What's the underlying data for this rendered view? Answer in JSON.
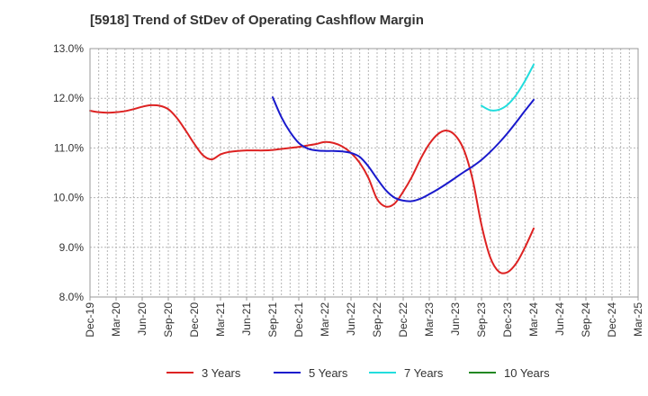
{
  "chart_data": {
    "type": "line",
    "title": "[5918]  Trend of StDev of Operating Cashflow Margin",
    "xlabel": "",
    "ylabel": "",
    "ylim": [
      8.0,
      13.0
    ],
    "y_ticks": [
      "8.0%",
      "9.0%",
      "10.0%",
      "11.0%",
      "12.0%",
      "13.0%"
    ],
    "y_tick_values": [
      8.0,
      9.0,
      10.0,
      11.0,
      12.0,
      13.0
    ],
    "x_ticks": [
      "Dec-19",
      "Mar-20",
      "Jun-20",
      "Sep-20",
      "Dec-20",
      "Mar-21",
      "Jun-21",
      "Sep-21",
      "Dec-21",
      "Mar-22",
      "Jun-22",
      "Sep-22",
      "Dec-22",
      "Mar-23",
      "Jun-23",
      "Sep-23",
      "Dec-23",
      "Mar-24",
      "Jun-24",
      "Sep-24",
      "Dec-24",
      "Mar-25"
    ],
    "grid": true,
    "legend_position": "bottom",
    "series": [
      {
        "name": "3 Years",
        "color": "#dd2222",
        "points": [
          [
            "Dec-19",
            11.75
          ],
          [
            "Jan-20",
            11.72
          ],
          [
            "Feb-20",
            11.71
          ],
          [
            "Mar-20",
            11.72
          ],
          [
            "Apr-20",
            11.74
          ],
          [
            "May-20",
            11.78
          ],
          [
            "Jun-20",
            11.83
          ],
          [
            "Jul-20",
            11.86
          ],
          [
            "Aug-20",
            11.85
          ],
          [
            "Sep-20",
            11.78
          ],
          [
            "Oct-20",
            11.6
          ],
          [
            "Nov-20",
            11.35
          ],
          [
            "Dec-20",
            11.08
          ],
          [
            "Jan-21",
            10.85
          ],
          [
            "Feb-21",
            10.77
          ],
          [
            "Mar-21",
            10.87
          ],
          [
            "Apr-21",
            10.92
          ],
          [
            "May-21",
            10.94
          ],
          [
            "Jun-21",
            10.95
          ],
          [
            "Jul-21",
            10.95
          ],
          [
            "Aug-21",
            10.95
          ],
          [
            "Sep-21",
            10.96
          ],
          [
            "Oct-21",
            10.98
          ],
          [
            "Nov-21",
            11.0
          ],
          [
            "Dec-21",
            11.02
          ],
          [
            "Jan-22",
            11.05
          ],
          [
            "Feb-22",
            11.08
          ],
          [
            "Mar-22",
            11.12
          ],
          [
            "Apr-22",
            11.1
          ],
          [
            "May-22",
            11.03
          ],
          [
            "Jun-22",
            10.9
          ],
          [
            "Jul-22",
            10.7
          ],
          [
            "Aug-22",
            10.4
          ],
          [
            "Sep-22",
            9.97
          ],
          [
            "Oct-22",
            9.82
          ],
          [
            "Nov-22",
            9.88
          ],
          [
            "Dec-22",
            10.12
          ],
          [
            "Jan-23",
            10.42
          ],
          [
            "Feb-23",
            10.78
          ],
          [
            "Mar-23",
            11.08
          ],
          [
            "Apr-23",
            11.28
          ],
          [
            "May-23",
            11.35
          ],
          [
            "Jun-23",
            11.25
          ],
          [
            "Jul-23",
            10.95
          ],
          [
            "Aug-23",
            10.35
          ],
          [
            "Sep-23",
            9.45
          ],
          [
            "Oct-23",
            8.8
          ],
          [
            "Nov-23",
            8.51
          ],
          [
            "Dec-23",
            8.5
          ],
          [
            "Jan-24",
            8.68
          ],
          [
            "Feb-24",
            9.0
          ],
          [
            "Mar-24",
            9.38
          ]
        ]
      },
      {
        "name": "5 Years",
        "color": "#1a1acc",
        "points": [
          [
            "Sep-21",
            12.02
          ],
          [
            "Oct-21",
            11.62
          ],
          [
            "Nov-21",
            11.32
          ],
          [
            "Dec-21",
            11.1
          ],
          [
            "Jan-22",
            10.99
          ],
          [
            "Feb-22",
            10.95
          ],
          [
            "Mar-22",
            10.94
          ],
          [
            "Apr-22",
            10.94
          ],
          [
            "May-22",
            10.93
          ],
          [
            "Jun-22",
            10.9
          ],
          [
            "Jul-22",
            10.82
          ],
          [
            "Aug-22",
            10.63
          ],
          [
            "Sep-22",
            10.38
          ],
          [
            "Oct-22",
            10.15
          ],
          [
            "Nov-22",
            10.0
          ],
          [
            "Dec-22",
            9.94
          ],
          [
            "Jan-23",
            9.93
          ],
          [
            "Feb-23",
            9.98
          ],
          [
            "Mar-23",
            10.07
          ],
          [
            "Apr-23",
            10.17
          ],
          [
            "May-23",
            10.28
          ],
          [
            "Jun-23",
            10.4
          ],
          [
            "Jul-23",
            10.52
          ],
          [
            "Aug-23",
            10.63
          ],
          [
            "Sep-23",
            10.76
          ],
          [
            "Oct-23",
            10.92
          ],
          [
            "Nov-23",
            11.1
          ],
          [
            "Dec-23",
            11.3
          ],
          [
            "Jan-24",
            11.52
          ],
          [
            "Feb-24",
            11.75
          ],
          [
            "Mar-24",
            11.97
          ]
        ]
      },
      {
        "name": "7 Years",
        "color": "#22dddd",
        "points": [
          [
            "Sep-23",
            11.85
          ],
          [
            "Oct-23",
            11.76
          ],
          [
            "Nov-23",
            11.77
          ],
          [
            "Dec-23",
            11.87
          ],
          [
            "Jan-24",
            12.07
          ],
          [
            "Feb-24",
            12.35
          ],
          [
            "Mar-24",
            12.68
          ]
        ]
      },
      {
        "name": "10 Years",
        "color": "#228822",
        "points": []
      }
    ]
  }
}
